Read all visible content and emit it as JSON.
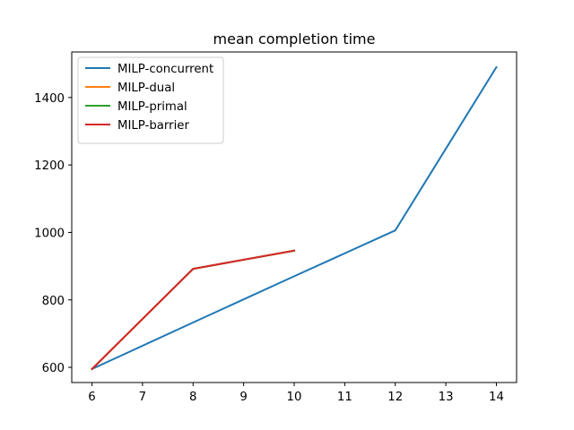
{
  "chart_data": {
    "type": "line",
    "title": "mean completion time",
    "xlabel": "",
    "ylabel": "",
    "xlim": [
      5.6,
      14.4
    ],
    "ylim": [
      555,
      1535
    ],
    "xticks": [
      6,
      7,
      8,
      9,
      10,
      11,
      12,
      13,
      14
    ],
    "yticks": [
      600,
      800,
      1000,
      1200,
      1400
    ],
    "grid": false,
    "legend_position": "upper-left",
    "series": [
      {
        "name": "MILP-concurrent",
        "color": "#1f77b4",
        "x": [
          6,
          8,
          10,
          12,
          14
        ],
        "y": [
          595,
          733,
          870,
          1006,
          1490
        ]
      },
      {
        "name": "MILP-dual",
        "color": "#ff7f0e",
        "x": [
          6,
          8,
          10
        ],
        "y": [
          595,
          892,
          946
        ]
      },
      {
        "name": "MILP-primal",
        "color": "#2ca02c",
        "x": [
          6,
          8,
          10
        ],
        "y": [
          595,
          892,
          946
        ]
      },
      {
        "name": "MILP-barrier",
        "color": "#d62728",
        "x": [
          6,
          8,
          10
        ],
        "y": [
          595,
          892,
          946
        ]
      }
    ]
  }
}
